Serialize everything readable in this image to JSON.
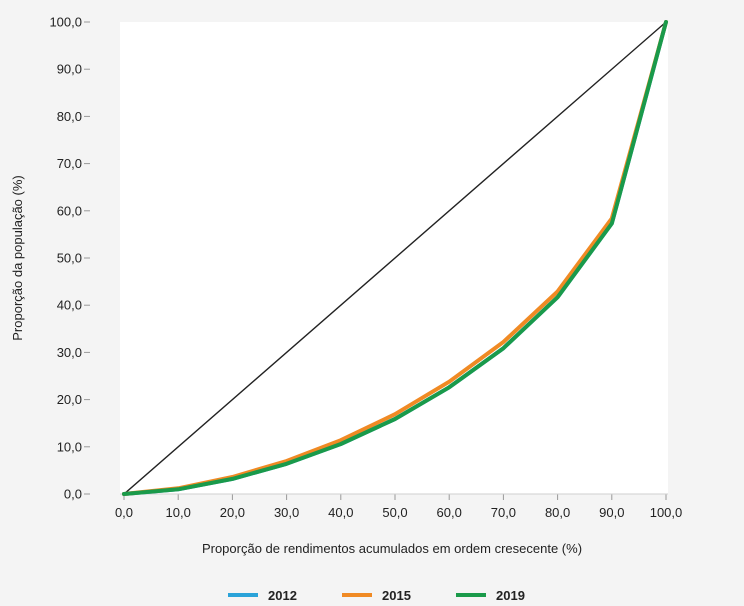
{
  "chart_data": {
    "type": "line",
    "title": "",
    "xlabel": "Proporção de rendimentos acumulados em ordem cresecente (%)",
    "ylabel": "Proporção da população (%)",
    "xlim": [
      0,
      100
    ],
    "ylim": [
      0,
      100
    ],
    "x_ticks": [
      0,
      10,
      20,
      30,
      40,
      50,
      60,
      70,
      80,
      90,
      100
    ],
    "y_ticks": [
      0,
      10,
      20,
      30,
      40,
      50,
      60,
      70,
      80,
      90,
      100
    ],
    "x_tick_labels": [
      "0,0",
      "10,0",
      "20,0",
      "30,0",
      "40,0",
      "50,0",
      "60,0",
      "70,0",
      "80,0",
      "90,0",
      "100,0"
    ],
    "y_tick_labels": [
      "0,0",
      "10,0",
      "20,0",
      "30,0",
      "40,0",
      "50,0",
      "60,0",
      "70,0",
      "80,0",
      "90,0",
      "100,0"
    ],
    "grid": false,
    "legend_position": "bottom",
    "equality_line": {
      "x": [
        0,
        100
      ],
      "y": [
        0,
        100
      ],
      "color": "#222222"
    },
    "x": [
      0,
      10,
      20,
      30,
      40,
      50,
      60,
      70,
      80,
      90,
      100
    ],
    "series": [
      {
        "name": "2012",
        "color": "#2aa3d9",
        "values": [
          0,
          1.0,
          3.2,
          6.4,
          10.6,
          15.9,
          22.6,
          30.9,
          41.7,
          57.3,
          100
        ]
      },
      {
        "name": "2015",
        "color": "#f08a24",
        "values": [
          0,
          1.2,
          3.6,
          7.0,
          11.4,
          16.9,
          23.8,
          32.2,
          42.9,
          58.4,
          100
        ]
      },
      {
        "name": "2019",
        "color": "#1a9a4a",
        "values": [
          0,
          1.0,
          3.2,
          6.4,
          10.6,
          15.9,
          22.6,
          30.9,
          41.7,
          57.3,
          100
        ]
      }
    ]
  }
}
